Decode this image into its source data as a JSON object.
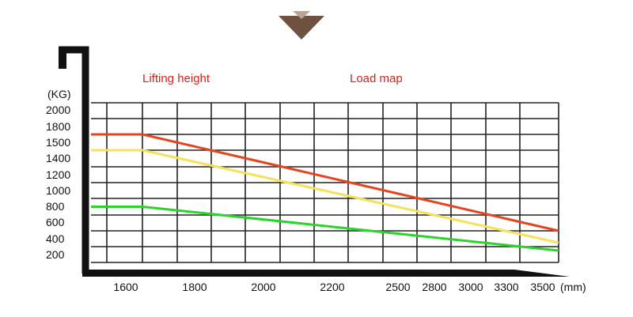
{
  "chart_data": {
    "type": "line",
    "title": "Load map",
    "subtitle": "Lifting height",
    "ylabel": "(KG)",
    "xlabel": "(mm)",
    "y_ticks": [
      "2000",
      "1800",
      "1500",
      "1400",
      "1200",
      "1000",
      "800",
      "600",
      "400",
      "200"
    ],
    "x_ticks": [
      "1600",
      "1800",
      "2000",
      "2200",
      "2500",
      "2800",
      "3000",
      "3300",
      "3500"
    ],
    "x": [
      "1600",
      "1800",
      "2000",
      "2200",
      "2500",
      "2800",
      "3000",
      "3300",
      "3500"
    ],
    "x_range_index": [
      -0.3,
      8.3
    ],
    "series": [
      {
        "name": "red",
        "color": "#e8431f",
        "points": [
          [
            -0.3,
            1800
          ],
          [
            0.6,
            1800
          ],
          [
            8.3,
            600
          ]
        ]
      },
      {
        "name": "yellow",
        "color": "#f5e15a",
        "points": [
          [
            -0.3,
            1500
          ],
          [
            0.6,
            1500
          ],
          [
            8.3,
            450
          ]
        ]
      },
      {
        "name": "green",
        "color": "#2bd42b",
        "points": [
          [
            -0.3,
            900
          ],
          [
            0.6,
            900
          ],
          [
            8.3,
            350
          ]
        ]
      }
    ],
    "grid": true,
    "legend": "none"
  },
  "colors": {
    "axis": "#111111",
    "grid": "#222222",
    "heading": "#d9231b",
    "arrow": "#7a5a45"
  }
}
